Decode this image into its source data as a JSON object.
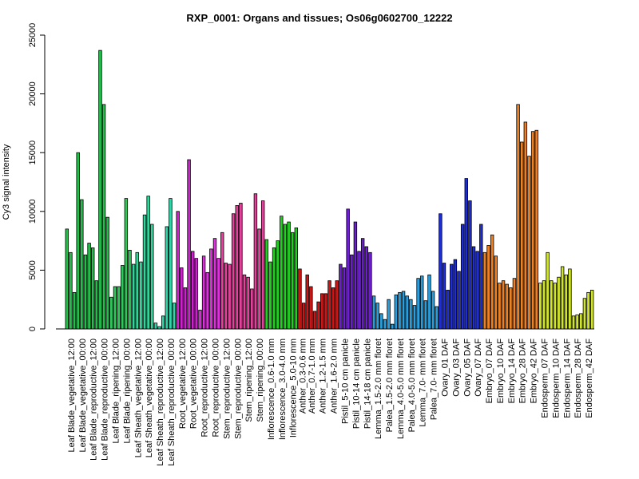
{
  "chart_data": {
    "type": "bar",
    "title": "RXP_0001: Organs and tissues; Os06g0602700_12222",
    "ylabel": "Cy3 signal intensity",
    "ylim": [
      0,
      25000
    ],
    "yticks": [
      0,
      5000,
      10000,
      15000,
      20000,
      25000
    ],
    "groups": [
      {
        "label": "Leaf Blade_vegetative_12:00",
        "color": "#22c04a",
        "values": [
          8500,
          6500,
          3100
        ]
      },
      {
        "label": "Leaf Blade_vegetative_00:00",
        "color": "#22c04a",
        "values": [
          15000,
          11000,
          6300
        ]
      },
      {
        "label": "Leaf Blade_reproductive_12:00",
        "color": "#22c04a",
        "values": [
          7300,
          6900,
          4100
        ]
      },
      {
        "label": "Leaf Blade_reproductive_00:00",
        "color": "#22c04a",
        "values": [
          23700,
          19100,
          9500
        ]
      },
      {
        "label": "Leaf Blade_ripening_12:00",
        "color": "#2fc85a",
        "values": [
          2700,
          3600,
          3600
        ]
      },
      {
        "label": "Leaf Blade_ripening_00:00",
        "color": "#2fc85a",
        "values": [
          5400,
          11100,
          6700
        ]
      },
      {
        "label": "Leaf Sheath_vegetative_12:00",
        "color": "#2fd79a",
        "values": [
          5500,
          6500,
          5700
        ]
      },
      {
        "label": "Leaf Sheath_vegetative_00:00",
        "color": "#2fd79a",
        "values": [
          9700,
          11300,
          8900
        ]
      },
      {
        "label": "Leaf Sheath_reproductive_12:00",
        "color": "#2fd7a8",
        "values": [
          500,
          200,
          1100
        ]
      },
      {
        "label": "Leaf Sheath_reproductive_00:00",
        "color": "#2fd7a8",
        "values": [
          8700,
          11100,
          2200
        ]
      },
      {
        "label": "Root_vegetative_12:00",
        "color": "#d21ed2",
        "values": [
          10000,
          5200,
          3500
        ]
      },
      {
        "label": "Root_vegetative_00:00",
        "color": "#d21ed2",
        "values": [
          14400,
          6600,
          6000
        ]
      },
      {
        "label": "Root_reproductive_12:00",
        "color": "#e02ee0",
        "values": [
          1600,
          6200,
          4800
        ]
      },
      {
        "label": "Root_reproductive_00:00",
        "color": "#e02ee0",
        "values": [
          6800,
          7700,
          6000
        ]
      },
      {
        "label": "Stem_reproductive_12:00",
        "color": "#e8409c",
        "values": [
          8200,
          5600,
          5500
        ]
      },
      {
        "label": "Stem_reproductive_00:00",
        "color": "#e8409c",
        "values": [
          9800,
          10500,
          10700
        ]
      },
      {
        "label": "Stem_ripening_12:00",
        "color": "#e8409c",
        "values": [
          4600,
          4400,
          3400
        ]
      },
      {
        "label": "Stem_ripening_00:00",
        "color": "#e8409c",
        "values": [
          11500,
          8500,
          10900
        ]
      },
      {
        "label": "Inflorescence_0.6-1.0 mm",
        "color": "#1ed21e",
        "values": [
          7600,
          5700,
          6900
        ]
      },
      {
        "label": "Inflorescence_3.0-4.0 mm",
        "color": "#1ed21e",
        "values": [
          7500,
          9600,
          8900
        ]
      },
      {
        "label": "Inflorescence_5.0-10 mm",
        "color": "#1ed21e",
        "values": [
          9100,
          8200,
          8600
        ]
      },
      {
        "label": "Anther_0.3-0.6 mm",
        "color": "#d21414",
        "values": [
          5100,
          2200
        ]
      },
      {
        "label": "Anther_0.7-1.0 mm",
        "color": "#d21414",
        "values": [
          4600,
          3600,
          1500
        ]
      },
      {
        "label": "Anther_1.2-1.5 mm",
        "color": "#d21414",
        "values": [
          2300,
          3000,
          3000
        ]
      },
      {
        "label": "Anther_1.6-2.0 mm",
        "color": "#d21414",
        "values": [
          4100,
          3500,
          4100
        ]
      },
      {
        "label": "Pistil_5-10 cm panicle",
        "color": "#6e1ed2",
        "values": [
          5500,
          5200,
          10200
        ]
      },
      {
        "label": "Pistil_10-14 cm panicle",
        "color": "#6e1ed2",
        "values": [
          6300,
          9100,
          6600
        ]
      },
      {
        "label": "Pistil_14-18 cm panicle",
        "color": "#6e1ed2",
        "values": [
          7700,
          7000,
          6500
        ]
      },
      {
        "label": "Lemma_1.5-2.0 mm floret",
        "color": "#28a0e0",
        "values": [
          2800,
          2200,
          1300
        ]
      },
      {
        "label": "Palea_1.5-2.0 mm floret",
        "color": "#28a0e0",
        "values": [
          800,
          2500,
          400
        ]
      },
      {
        "label": "Lemma_4.0-5.0 mm floret",
        "color": "#28a0e0",
        "values": [
          2900,
          3100,
          3200
        ]
      },
      {
        "label": "Palea_4.0-5.0 mm floret",
        "color": "#28a0e0",
        "values": [
          2800,
          2500,
          2000
        ]
      },
      {
        "label": "Lemma_7.0- mm floret",
        "color": "#28a0e0",
        "values": [
          4300,
          4500,
          2400
        ]
      },
      {
        "label": "Palea_7.0- mm floret",
        "color": "#28a0e0",
        "values": [
          4600,
          3200,
          1900
        ]
      },
      {
        "label": "Ovary_01 DAF",
        "color": "#1e2ed2",
        "values": [
          9800,
          5600,
          3300
        ]
      },
      {
        "label": "Ovary_03 DAF",
        "color": "#1e2ed2",
        "values": [
          5500,
          5900,
          4900
        ]
      },
      {
        "label": "Ovary_05 DAF",
        "color": "#1e2ed2",
        "values": [
          8900,
          12800,
          10900
        ]
      },
      {
        "label": "Ovary_07 DAF",
        "color": "#1e2ed2",
        "values": [
          7000,
          6600,
          8900
        ]
      },
      {
        "label": "Embryo_07 DAF",
        "color": "#f08020",
        "values": [
          6500,
          7100,
          8000
        ]
      },
      {
        "label": "Embryo_10 DAF",
        "color": "#f08020",
        "values": [
          6200,
          3900,
          4100
        ]
      },
      {
        "label": "Embryo_14 DAF",
        "color": "#f08020",
        "values": [
          3800,
          3500,
          4300
        ]
      },
      {
        "label": "Embryo_28 DAF",
        "color": "#f08020",
        "values": [
          19100,
          15900,
          17600
        ]
      },
      {
        "label": "Embryo_42 DAF",
        "color": "#f08020",
        "values": [
          14700,
          16800,
          16900
        ]
      },
      {
        "label": "Endosperm_07 DAF",
        "color": "#d2e628",
        "values": [
          3900,
          4100,
          6500
        ]
      },
      {
        "label": "Endosperm_10 DAF",
        "color": "#d2e628",
        "values": [
          4100,
          3900,
          4400
        ]
      },
      {
        "label": "Endosperm_14 DAF",
        "color": "#d2e628",
        "values": [
          5300,
          4600,
          5100
        ]
      },
      {
        "label": "Endosperm_28 DAF",
        "color": "#d2e628",
        "values": [
          1100,
          1200,
          1300
        ]
      },
      {
        "label": "Endosperm_42 DAF",
        "color": "#d2e628",
        "values": [
          2600,
          3100,
          3300
        ]
      }
    ]
  }
}
